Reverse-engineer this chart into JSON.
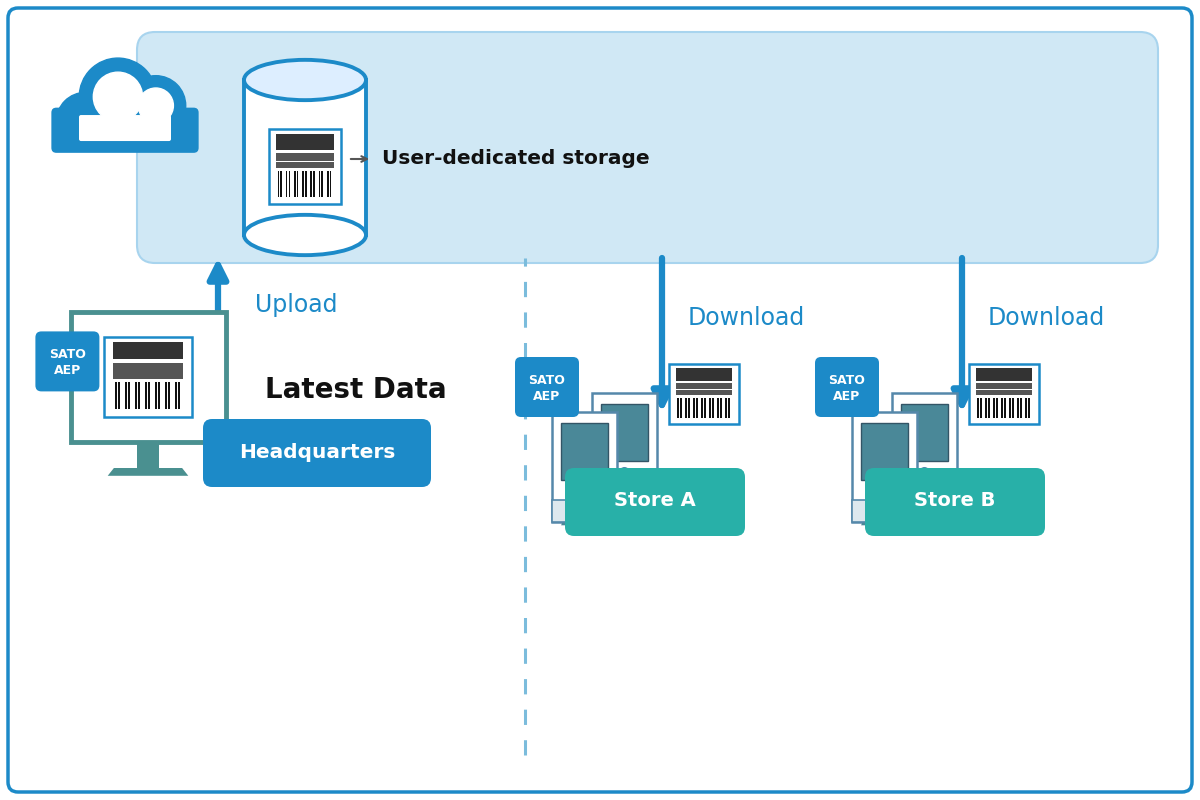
{
  "bg_color": "#ffffff",
  "border_color": "#1a7abf",
  "blue_main": "#1c8ac8",
  "blue_light_bg": "#d0e8f5",
  "teal_color": "#4a9090",
  "blue_badge": "#1c8ac8",
  "teal_badge": "#28b0a8",
  "label_storage": "User-dedicated storage",
  "label_upload": "Upload",
  "label_download": "Download",
  "label_latest": "Latest Data",
  "label_hq": "Headquarters",
  "label_store_a": "Store A",
  "label_store_b": "Store B"
}
